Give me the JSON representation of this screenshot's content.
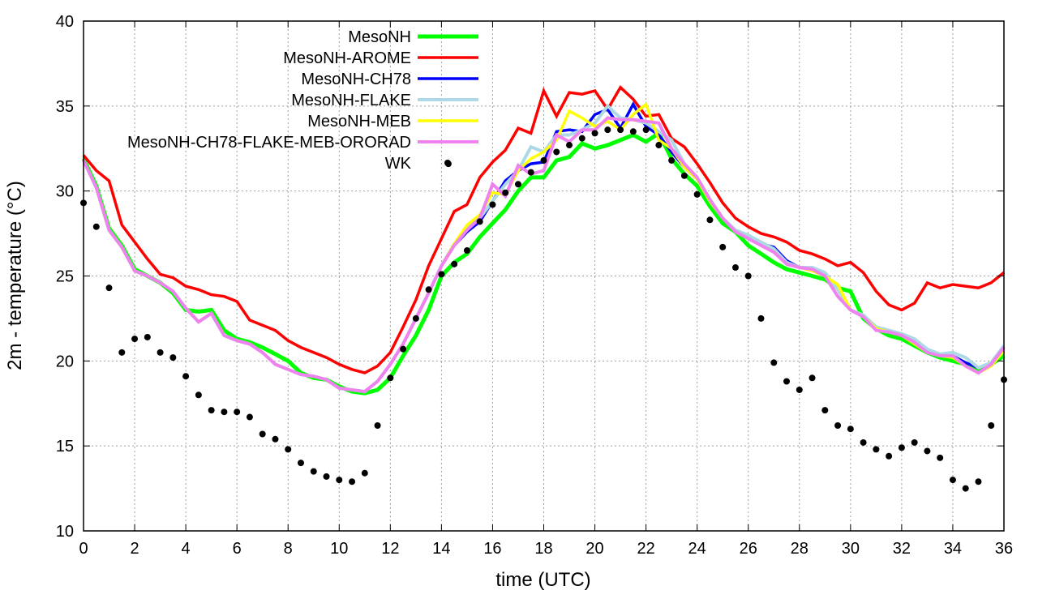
{
  "chart_data": {
    "type": "line",
    "title": "",
    "xlabel": "time (UTC)",
    "ylabel": "2m - temperature (°C)",
    "xlim": [
      0,
      36
    ],
    "ylim": [
      10,
      40
    ],
    "xticks": [
      0,
      2,
      4,
      6,
      8,
      10,
      12,
      14,
      16,
      18,
      20,
      22,
      24,
      26,
      28,
      30,
      32,
      34,
      36
    ],
    "yticks": [
      10,
      15,
      20,
      25,
      30,
      35,
      40
    ],
    "grid": true,
    "legend_position": "top-left",
    "x_step": 0.5,
    "series": [
      {
        "name": "MesoNH",
        "color": "#00ff00",
        "width": 5,
        "values": [
          31.9,
          30.3,
          27.8,
          26.8,
          25.4,
          25.0,
          24.6,
          24.0,
          23.0,
          22.9,
          23.0,
          21.8,
          21.3,
          21.1,
          20.8,
          20.4,
          20.0,
          19.3,
          19.0,
          18.9,
          18.5,
          18.2,
          18.1,
          18.3,
          19.0,
          20.3,
          21.5,
          23.0,
          25.0,
          25.8,
          26.3,
          27.3,
          28.1,
          28.9,
          30.0,
          30.8,
          30.8,
          31.8,
          32.0,
          32.8,
          32.5,
          32.7,
          33.0,
          33.3,
          32.9,
          33.4,
          31.9,
          31.0,
          30.3,
          29.1,
          28.1,
          27.6,
          26.8,
          26.3,
          25.8,
          25.4,
          25.2,
          25.0,
          24.8,
          24.3,
          24.1,
          22.5,
          21.9,
          21.5,
          21.3,
          20.9,
          20.5,
          20.2,
          20.0,
          19.8,
          19.5,
          19.8,
          20.3
        ]
      },
      {
        "name": "MesoNH-AROME",
        "color": "#ff0000",
        "width": 3.5,
        "values": [
          32.1,
          31.2,
          30.6,
          28.0,
          27.0,
          26.0,
          25.1,
          24.9,
          24.4,
          24.2,
          23.9,
          23.8,
          23.5,
          22.4,
          22.1,
          21.8,
          21.2,
          20.8,
          20.5,
          20.2,
          19.8,
          19.5,
          19.3,
          19.7,
          20.5,
          22.0,
          23.6,
          25.6,
          27.2,
          28.8,
          29.2,
          30.8,
          31.7,
          32.4,
          33.7,
          33.4,
          35.9,
          34.4,
          35.8,
          35.7,
          35.9,
          34.8,
          36.1,
          35.4,
          34.4,
          34.5,
          33.1,
          32.6,
          31.6,
          30.5,
          29.3,
          28.4,
          27.9,
          27.5,
          27.3,
          27.0,
          26.5,
          26.3,
          26.0,
          25.6,
          25.8,
          25.2,
          24.1,
          23.3,
          23.0,
          23.4,
          24.6,
          24.3,
          24.5,
          24.4,
          24.3,
          24.6,
          25.2
        ]
      },
      {
        "name": "MesoNH-CH78",
        "color": "#0000ff",
        "width": 3.5,
        "values": [
          31.8,
          30.2,
          27.7,
          26.7,
          25.3,
          25.0,
          24.6,
          24.1,
          23.1,
          22.3,
          22.8,
          21.5,
          21.2,
          21.0,
          20.5,
          19.8,
          19.5,
          19.2,
          19.1,
          18.9,
          18.4,
          18.3,
          18.2,
          18.8,
          19.8,
          21.0,
          22.5,
          24.0,
          25.6,
          26.8,
          27.6,
          28.2,
          29.4,
          30.6,
          31.2,
          31.6,
          31.7,
          33.5,
          33.6,
          33.5,
          34.5,
          34.8,
          33.7,
          35.1,
          33.8,
          33.3,
          32.3,
          31.4,
          30.7,
          29.4,
          28.4,
          27.6,
          27.3,
          26.9,
          26.7,
          25.9,
          25.5,
          25.4,
          25.0,
          23.8,
          23.0,
          22.6,
          21.9,
          21.7,
          21.5,
          21.1,
          20.6,
          20.3,
          20.3,
          19.9,
          19.6,
          19.9,
          20.8
        ]
      },
      {
        "name": "MesoNH-FLAKE",
        "color": "#add8e6",
        "width": 4,
        "values": [
          31.8,
          30.2,
          27.7,
          26.7,
          25.3,
          25.0,
          24.6,
          24.1,
          23.1,
          22.3,
          22.8,
          21.5,
          21.2,
          21.0,
          20.5,
          19.8,
          19.5,
          19.2,
          19.1,
          18.9,
          18.4,
          18.3,
          18.2,
          18.8,
          19.8,
          21.0,
          22.5,
          24.0,
          25.6,
          26.9,
          27.9,
          28.4,
          29.4,
          30.4,
          31.2,
          32.6,
          32.3,
          33.3,
          33.3,
          33.6,
          34.0,
          35.0,
          34.3,
          34.2,
          34.0,
          33.5,
          33.0,
          31.6,
          30.7,
          29.4,
          28.4,
          27.7,
          27.4,
          27.0,
          26.6,
          25.8,
          25.5,
          25.5,
          25.2,
          24.2,
          23.0,
          22.7,
          22.0,
          21.8,
          21.6,
          21.3,
          20.7,
          20.4,
          20.5,
          20.2,
          19.6,
          19.9,
          20.9
        ]
      },
      {
        "name": "MesoNH-MEB",
        "color": "#ffff00",
        "width": 3.5,
        "values": [
          31.8,
          30.2,
          27.7,
          26.7,
          25.3,
          25.0,
          24.6,
          24.1,
          23.1,
          22.3,
          22.8,
          21.5,
          21.2,
          21.0,
          20.5,
          19.8,
          19.5,
          19.2,
          19.1,
          18.9,
          18.4,
          18.3,
          18.2,
          18.8,
          19.8,
          21.0,
          22.5,
          24.0,
          25.6,
          26.9,
          28.0,
          28.6,
          29.9,
          29.8,
          31.2,
          31.9,
          32.3,
          33.0,
          34.7,
          34.3,
          33.8,
          34.1,
          33.6,
          34.5,
          35.1,
          33.0,
          32.5,
          31.4,
          30.7,
          29.4,
          28.4,
          27.6,
          27.2,
          26.8,
          26.4,
          25.7,
          25.5,
          25.3,
          25.0,
          24.5,
          23.0,
          22.6,
          21.9,
          21.7,
          21.5,
          21.0,
          20.5,
          20.3,
          20.2,
          19.7,
          19.3,
          19.7,
          20.6
        ]
      },
      {
        "name": "MesoNH-CH78-FLAKE-MEB-ORORAD",
        "color": "#ee82ee",
        "width": 4,
        "values": [
          31.8,
          30.2,
          27.7,
          26.7,
          25.3,
          25.0,
          24.6,
          24.1,
          23.1,
          22.3,
          22.8,
          21.5,
          21.2,
          21.0,
          20.5,
          19.8,
          19.5,
          19.2,
          19.1,
          18.9,
          18.4,
          18.3,
          18.2,
          18.8,
          19.8,
          21.0,
          22.5,
          24.0,
          25.6,
          26.8,
          27.7,
          28.4,
          30.4,
          29.7,
          31.5,
          31.0,
          31.2,
          33.3,
          32.9,
          33.6,
          33.6,
          34.3,
          34.2,
          34.2,
          34.1,
          34.0,
          32.5,
          31.6,
          30.8,
          29.5,
          28.4,
          27.6,
          27.2,
          26.8,
          26.4,
          25.7,
          25.5,
          25.4,
          25.0,
          23.8,
          23.0,
          22.6,
          21.8,
          21.7,
          21.5,
          21.1,
          20.5,
          20.3,
          20.3,
          19.7,
          19.3,
          19.8,
          20.8
        ]
      }
    ],
    "points": {
      "name": "WK",
      "color": "#000000",
      "x": [
        0,
        0.5,
        1,
        1.5,
        2,
        2.5,
        3,
        3.5,
        4,
        4.5,
        5,
        5.5,
        6,
        6.5,
        7,
        7.5,
        8,
        8.5,
        9,
        9.5,
        10,
        10.5,
        11,
        11.5,
        12,
        12.5,
        13,
        13.5,
        14,
        14.27,
        14.5,
        15,
        15.5,
        16,
        16.5,
        17,
        17.5,
        18,
        18.5,
        19,
        19.5,
        20,
        20.5,
        21,
        21.5,
        22,
        22.5,
        23,
        23.5,
        24,
        24.5,
        25,
        25.5,
        26,
        26.5,
        27,
        27.5,
        28,
        28.5,
        29,
        29.5,
        30,
        30.5,
        31,
        31.5,
        32,
        32.5,
        33,
        33.5,
        34,
        34.5,
        35,
        35.5,
        36
      ],
      "y": [
        29.3,
        27.9,
        24.3,
        20.5,
        21.3,
        21.4,
        20.5,
        20.2,
        19.1,
        18.0,
        17.1,
        17.0,
        17.0,
        16.7,
        15.7,
        15.4,
        14.8,
        14.0,
        13.5,
        13.2,
        13.0,
        12.9,
        13.4,
        16.2,
        19.0,
        20.7,
        22.5,
        24.2,
        25.1,
        31.6,
        25.7,
        26.5,
        28.2,
        29.2,
        29.9,
        30.4,
        31.1,
        31.8,
        32.3,
        32.7,
        33.1,
        33.4,
        33.6,
        33.6,
        33.5,
        33.6,
        32.7,
        31.8,
        30.9,
        29.8,
        28.3,
        26.7,
        25.5,
        25.0,
        22.5,
        19.9,
        18.8,
        18.3,
        19.0,
        17.1,
        16.2,
        16.0,
        15.2,
        14.8,
        14.4,
        14.9,
        15.2,
        14.7,
        14.3,
        13.0,
        12.5,
        12.9,
        16.2,
        18.9
      ]
    }
  }
}
